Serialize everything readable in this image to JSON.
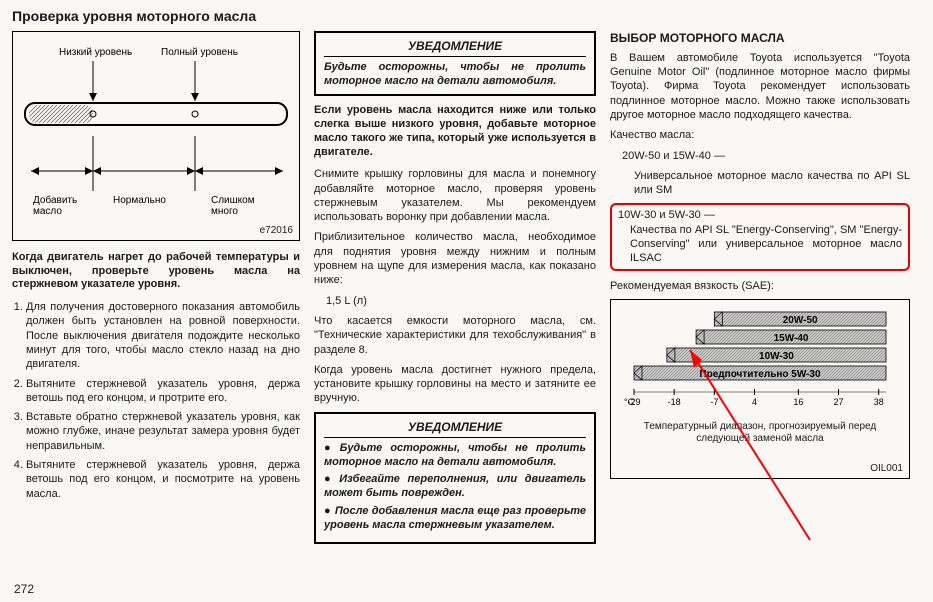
{
  "title": "Проверка уровня моторного масла",
  "dipstick": {
    "low_label": "Низкий уровень",
    "full_label": "Полный уровень",
    "add_label": "Добавить\nмасло",
    "normal_label": "Нормально",
    "too_much_label": "Слишком\nмного",
    "ref": "e72016"
  },
  "col1": {
    "bold_para": "Когда двигатель нагрет до рабочей температуры и выключен, проверьте уровень масла на стержневом указателе уровня.",
    "list": [
      "Для получения достоверного показания автомобиль должен быть установлен на ровной поверхности. После выключения двигателя подождите несколько минут для того, чтобы масло стекло назад на дно двигателя.",
      "Вытяните стержневой указатель уровня, держа ветошь под его концом, и протрите его.",
      "Вставьте обратно стержневой указатель уровня, как можно глубже, иначе результат замера уровня будет неправильным.",
      "Вытяните стержневой указатель уровня, держа ветошь под его концом, и посмотрите на уровень масла."
    ]
  },
  "col2": {
    "notice1_title": "УВЕДОМЛЕНИЕ",
    "notice1_body": "Будьте осторожны, чтобы не пролить моторное масло на детали автомобиля.",
    "bold_para": "Если уровень масла находится ниже или только слегка выше низкого уровня, добавьте моторное масло такого же типа, который уже используется в двигателе.",
    "para1": "Снимите крышку горловины для масла и понемногу добавляйте моторное масло, проверяя уровень стержневым указателем. Мы рекомендуем использовать воронку при добавлении масла.",
    "para2": "Приблизительное количество масла, необходимое для поднятия уровня между нижним и полным уровнем на щупе для измерения масла, как показано ниже:",
    "amount": "1,5 L (л)",
    "para3": "Что касается емкости моторного масла, см. \"Технические характеристики для техобслуживания\" в разделе 8.",
    "para4": "Когда уровень масла достигнет нужного предела, установите крышку горловины на место и затяните ее вручную.",
    "notice2_title": "УВЕДОМЛЕНИЕ",
    "notice2_items": [
      "Будьте осторожны, чтобы не пролить моторное масло на детали автомобиля.",
      "Избегайте переполнения, или двигатель может быть поврежден.",
      "После добавления масла еще раз проверьте уровень масла стержневым указателем."
    ]
  },
  "col3": {
    "title": "ВЫБОР МОТОРНОГО МАСЛА",
    "para1": "В Вашем автомобиле Toyota используется \"Toyota Genuine Motor Oil\" (подлинное моторное масло фирмы Toyota). Фирма Toyota рекомендует использовать подлинное моторное масло. Можно также использовать другое моторное масло подходящего качества.",
    "quality_label": "Качество масла:",
    "grade1_head": "20W-50 и 15W-40 —",
    "grade1_body": "Универсальное моторное масло качества по API SL или SM",
    "grade2_head": "10W-30 и 5W-30 —",
    "grade2_body": "Качества по API SL \"Energy-Conserving\", SM \"Energy-Conserving\" или универсальное моторное масло ILSAC",
    "visc_label": "Рекомендуемая вязкость (SAE):",
    "chart": {
      "bars": [
        {
          "label": "20W-50",
          "start": -7,
          "end": 40
        },
        {
          "label": "15W-40",
          "start": -12,
          "end": 40
        },
        {
          "label": "10W-30",
          "start": -20,
          "end": 40
        },
        {
          "label": "Предпочтительно 5W-30",
          "start": -29,
          "end": 40
        }
      ],
      "temps_c": [
        "-29",
        "-18",
        "-7",
        "4",
        "16",
        "27",
        "38"
      ],
      "unit": "°C",
      "caption": "Температурный диапазон, прогнозируемый перед следующей заменой масла",
      "ref": "OIL001",
      "bar_fill": "#c8c8c8",
      "hatch_color": "#666666"
    }
  },
  "page_number": "272",
  "highlight_color": "#e60000",
  "arrow_color": "#ff0000"
}
